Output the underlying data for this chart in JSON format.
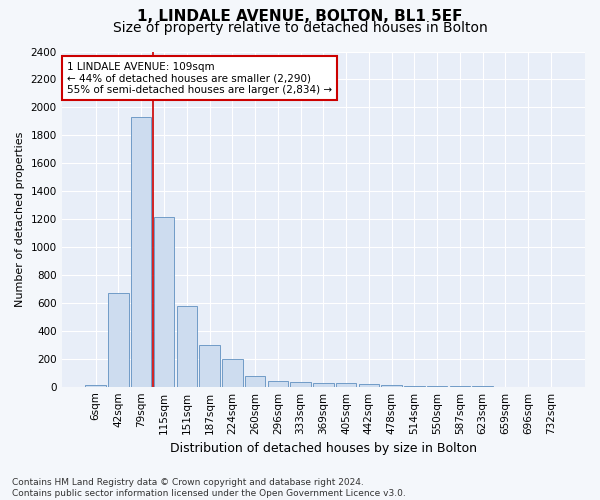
{
  "title1": "1, LINDALE AVENUE, BOLTON, BL1 5EF",
  "title2": "Size of property relative to detached houses in Bolton",
  "xlabel": "Distribution of detached houses by size in Bolton",
  "ylabel": "Number of detached properties",
  "categories": [
    "6sqm",
    "42sqm",
    "79sqm",
    "115sqm",
    "151sqm",
    "187sqm",
    "224sqm",
    "260sqm",
    "296sqm",
    "333sqm",
    "369sqm",
    "405sqm",
    "442sqm",
    "478sqm",
    "514sqm",
    "550sqm",
    "587sqm",
    "623sqm",
    "659sqm",
    "696sqm",
    "732sqm"
  ],
  "values": [
    10,
    670,
    1930,
    1215,
    575,
    300,
    195,
    75,
    40,
    30,
    25,
    25,
    20,
    12,
    8,
    5,
    3,
    2,
    1,
    1,
    1
  ],
  "bar_color": "#cddcef",
  "bar_edge_color": "#6090c0",
  "vline_color": "#cc0000",
  "vline_index": 2.5,
  "annotation_text": "1 LINDALE AVENUE: 109sqm\n← 44% of detached houses are smaller (2,290)\n55% of semi-detached houses are larger (2,834) →",
  "annotation_box_facecolor": "#ffffff",
  "annotation_box_edgecolor": "#cc0000",
  "ylim": [
    0,
    2400
  ],
  "yticks": [
    0,
    200,
    400,
    600,
    800,
    1000,
    1200,
    1400,
    1600,
    1800,
    2000,
    2200,
    2400
  ],
  "footnote": "Contains HM Land Registry data © Crown copyright and database right 2024.\nContains public sector information licensed under the Open Government Licence v3.0.",
  "fig_bg_color": "#f4f7fb",
  "plot_bg_color": "#e8eef8",
  "grid_color": "#ffffff",
  "title1_fontsize": 11,
  "title2_fontsize": 10,
  "xlabel_fontsize": 9,
  "ylabel_fontsize": 8,
  "tick_fontsize": 7.5,
  "annotation_fontsize": 7.5,
  "footnote_fontsize": 6.5
}
